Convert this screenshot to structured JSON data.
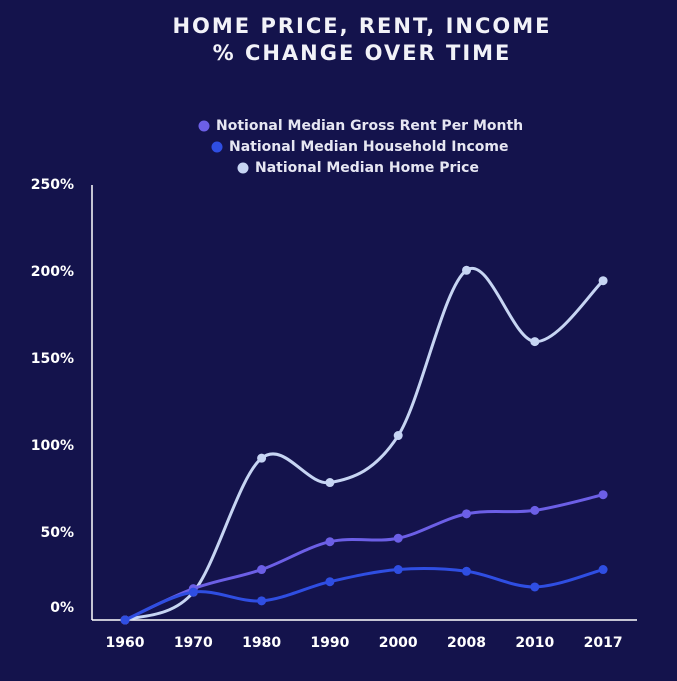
{
  "chart_data": {
    "type": "line",
    "title": [
      "HOME PRICE, RENT, INCOME",
      "% CHANGE OVER TIME"
    ],
    "categories": [
      "1960",
      "1970",
      "1980",
      "1990",
      "2000",
      "2008",
      "2010",
      "2017"
    ],
    "series": [
      {
        "name": "Notional Median Gross Rent Per Month",
        "color": "#6c5fe6",
        "values": [
          0,
          18,
          29,
          45,
          47,
          61,
          63,
          72
        ]
      },
      {
        "name": "National Median Household Income",
        "color": "#2f4ee2",
        "values": [
          0,
          16,
          11,
          22,
          29,
          28,
          19,
          29
        ]
      },
      {
        "name": "National Median Home Price",
        "color": "#c7d5f3",
        "values": [
          0,
          16,
          93,
          79,
          106,
          201,
          160,
          195
        ]
      }
    ],
    "ylim": [
      0,
      250
    ],
    "yticks": [
      {
        "value": 0,
        "label": "0%"
      },
      {
        "value": 50,
        "label": "50%"
      },
      {
        "value": 100,
        "label": "100%"
      },
      {
        "value": 150,
        "label": "150%"
      },
      {
        "value": 200,
        "label": "200%"
      },
      {
        "value": 250,
        "label": "250%"
      }
    ],
    "legend_position": "top"
  }
}
